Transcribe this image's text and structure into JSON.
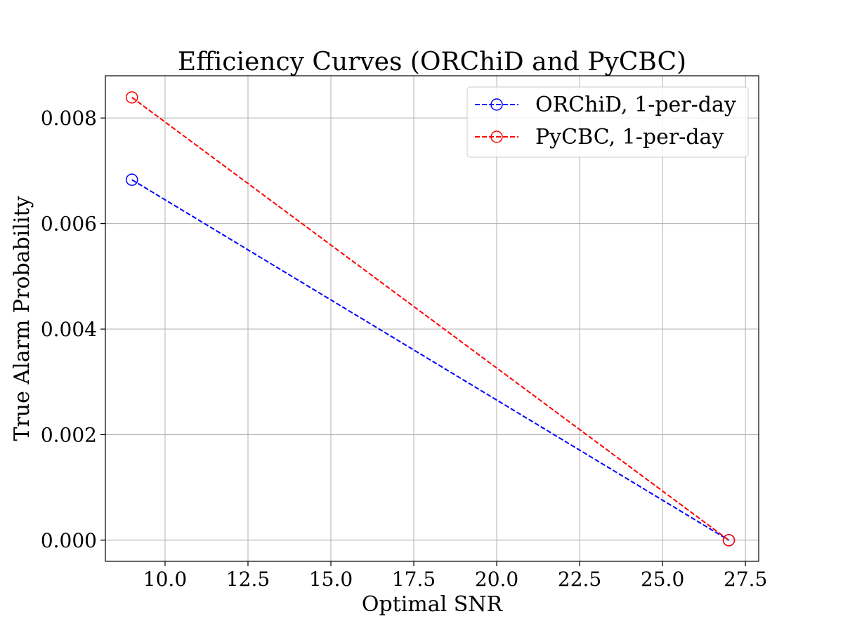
{
  "chart_data": {
    "type": "line",
    "title": "Efficiency Curves (ORChiD and PyCBC)",
    "xlabel": "Optimal SNR",
    "ylabel": "True Alarm Probability",
    "xlim": [
      8.2,
      27.9
    ],
    "ylim": [
      -0.0004,
      0.0088
    ],
    "x_ticks": [
      10.0,
      12.5,
      15.0,
      17.5,
      20.0,
      22.5,
      25.0,
      27.5
    ],
    "x_tick_labels": [
      "10.0",
      "12.5",
      "15.0",
      "17.5",
      "20.0",
      "22.5",
      "25.0",
      "27.5"
    ],
    "y_ticks": [
      0.0,
      0.002,
      0.004,
      0.006,
      0.008
    ],
    "y_tick_labels": [
      "0.000",
      "0.002",
      "0.004",
      "0.006",
      "0.008"
    ],
    "grid": true,
    "legend_position": "top-right",
    "series": [
      {
        "name": "ORChiD, 1-per-day",
        "color": "#0000ff",
        "linestyle": "dashed",
        "marker": "open-circle",
        "x": [
          9.0,
          27.0
        ],
        "y": [
          0.00683,
          0.0
        ]
      },
      {
        "name": "PyCBC, 1-per-day",
        "color": "#ff0000",
        "linestyle": "dashed",
        "marker": "open-circle",
        "x": [
          9.0,
          27.0
        ],
        "y": [
          0.00839,
          0.0
        ]
      }
    ]
  }
}
